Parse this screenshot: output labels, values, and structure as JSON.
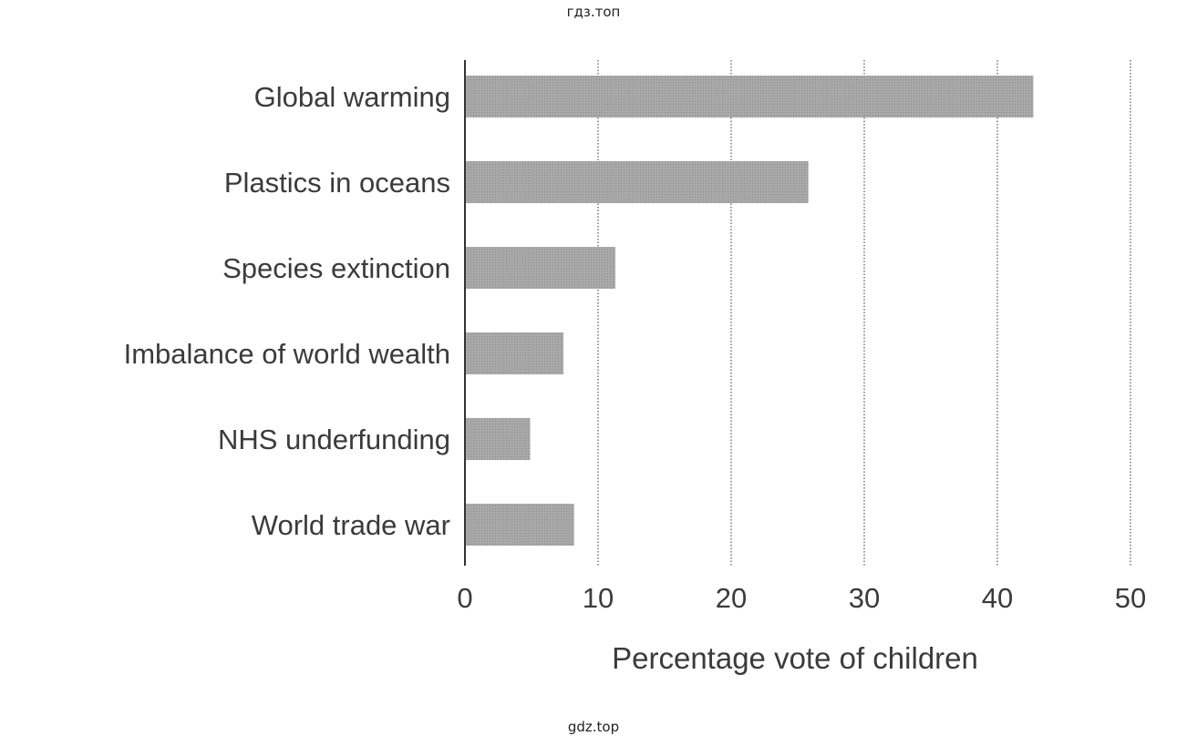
{
  "watermarks": {
    "top": "гдз.топ",
    "bottom": "gdz.top"
  },
  "chart_data": {
    "type": "bar",
    "orientation": "horizontal",
    "categories": [
      "Global warming",
      "Plastics in oceans",
      "Species extinction",
      "Imbalance of world wealth",
      "NHS underfunding",
      "World trade war"
    ],
    "values": [
      42.7,
      25.8,
      11.3,
      7.4,
      4.9,
      8.2
    ],
    "title": "",
    "xlabel": "Percentage vote of children",
    "ylabel": "",
    "xlim": [
      0,
      50
    ],
    "xticks": [
      0,
      10,
      20,
      30,
      40,
      50
    ],
    "grid": "vertical dotted",
    "colors": {
      "bar": "#a9a9a9",
      "grid": "#555555",
      "axis": "#333333",
      "text": "#3b3b3b"
    }
  }
}
